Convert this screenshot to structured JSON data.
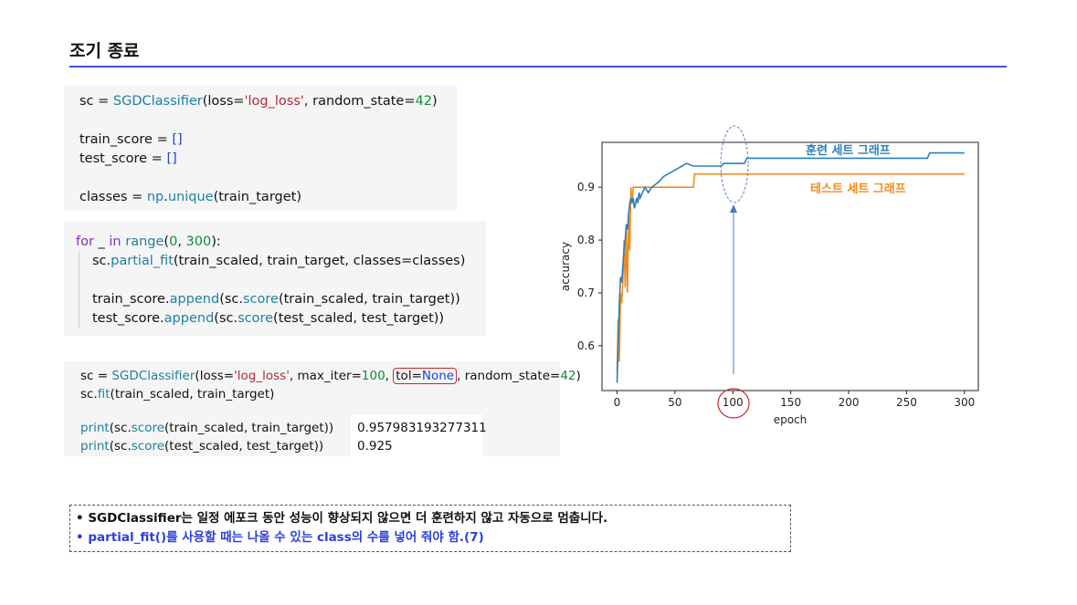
{
  "slide_title": "조기 종료",
  "code_block_1": {
    "l1": {
      "a": "sc = ",
      "fn": "SGDClassifier",
      "b": "(loss=",
      "s": "'log_loss'",
      "c": ", random_state=",
      "n": "42",
      "d": ")"
    },
    "l2": {
      "a": "train_score = ",
      "b": "[]"
    },
    "l3": {
      "a": "test_score = ",
      "b": "[]"
    },
    "l4": {
      "a": "classes = ",
      "np": "np",
      "b": ".",
      "fn": "unique",
      "c": "(train_target)"
    }
  },
  "code_block_2": {
    "l1": {
      "kw1": "for",
      "a": " _ ",
      "kw2": "in",
      "b": " ",
      "fn": "range",
      "c": "(",
      "n1": "0",
      "d": ", ",
      "n2": "300",
      "e": "):"
    },
    "l2": {
      "a": "sc.",
      "fn": "partial_fit",
      "b": "(train_scaled, train_target, classes=classes)"
    },
    "l3": {
      "a": "train_score.",
      "fn": "append",
      "b": "(sc.",
      "fn2": "score",
      "c": "(train_scaled, train_target))"
    },
    "l4": {
      "a": "test_score.",
      "fn": "append",
      "b": "(sc.",
      "fn2": "score",
      "c": "(test_scaled, test_target))"
    }
  },
  "code_block_3": {
    "l1": {
      "a": "sc = ",
      "fn": "SGDClassifier",
      "b": "(loss=",
      "s": "'log_loss'",
      "c": ", max_iter=",
      "n": "100",
      "d": ", ",
      "hl_a": "tol=",
      "hl_b": "None",
      "e": ", random_state=",
      "n2": "42",
      "f": ")"
    },
    "l2": {
      "a": "sc.",
      "fn": "fit",
      "b": "(train_scaled, train_target)"
    },
    "l3": {
      "fn": "print",
      "a": "(sc.",
      "fn2": "score",
      "b": "(train_scaled, train_target))"
    },
    "l4": {
      "fn": "print",
      "a": "(sc.",
      "fn2": "score",
      "b": "(test_scaled, test_target))"
    }
  },
  "outputs": {
    "train": "0.957983193277311",
    "test": "0.925"
  },
  "notes": {
    "line1": "• SGDClassifier는 일정 에포크 동안 성능이 향상되지 않으면 더 훈련하지 않고 자동으로 멈춥니다.",
    "line2": "• partial_fit()를 사용할 때는 나올 수 있는 class의 수를 넣어 줘야 함.(7)"
  },
  "chart_data": {
    "type": "line",
    "xlabel": "epoch",
    "ylabel": "accuracy",
    "xlim": [
      -13,
      312
    ],
    "ylim": [
      0.515,
      0.985
    ],
    "x_ticks": [
      0,
      50,
      100,
      150,
      200,
      250,
      300
    ],
    "y_ticks": [
      0.6,
      0.7,
      0.8,
      0.9
    ],
    "x_tick_labels": [
      "0",
      "50",
      "100",
      "150",
      "200",
      "250",
      "300"
    ],
    "y_tick_labels": [
      "0.6",
      "0.7",
      "0.8",
      "0.9"
    ],
    "series": [
      {
        "name": "훈련 세트 그래프",
        "color": "#2e7fb8",
        "points": [
          [
            0,
            0.53
          ],
          [
            1,
            0.6
          ],
          [
            2,
            0.68
          ],
          [
            3,
            0.73
          ],
          [
            4,
            0.72
          ],
          [
            5,
            0.75
          ],
          [
            6,
            0.78
          ],
          [
            7,
            0.8
          ],
          [
            8,
            0.83
          ],
          [
            9,
            0.82
          ],
          [
            10,
            0.85
          ],
          [
            11,
            0.87
          ],
          [
            12,
            0.88
          ],
          [
            13,
            0.87
          ],
          [
            14,
            0.88
          ],
          [
            15,
            0.86
          ],
          [
            16,
            0.87
          ],
          [
            17,
            0.88
          ],
          [
            18,
            0.87
          ],
          [
            19,
            0.89
          ],
          [
            20,
            0.88
          ],
          [
            22,
            0.89
          ],
          [
            24,
            0.9
          ],
          [
            27,
            0.89
          ],
          [
            30,
            0.9
          ],
          [
            33,
            0.905
          ],
          [
            36,
            0.91
          ],
          [
            40,
            0.92
          ],
          [
            44,
            0.925
          ],
          [
            48,
            0.93
          ],
          [
            52,
            0.935
          ],
          [
            56,
            0.94
          ],
          [
            60,
            0.945
          ],
          [
            66,
            0.94
          ],
          [
            90,
            0.94
          ],
          [
            92,
            0.945
          ],
          [
            110,
            0.945
          ],
          [
            112,
            0.955
          ],
          [
            200,
            0.955
          ],
          [
            268,
            0.955
          ],
          [
            270,
            0.965
          ],
          [
            300,
            0.965
          ]
        ]
      },
      {
        "name": "테스트 세트 그래프",
        "color": "#f08c1c",
        "points": [
          [
            0,
            0.55
          ],
          [
            1,
            0.65
          ],
          [
            2,
            0.57
          ],
          [
            3,
            0.7
          ],
          [
            4,
            0.68
          ],
          [
            5,
            0.72
          ],
          [
            6,
            0.8
          ],
          [
            7,
            0.71
          ],
          [
            8,
            0.82
          ],
          [
            9,
            0.7
          ],
          [
            10,
            0.85
          ],
          [
            11,
            0.78
          ],
          [
            12,
            0.9
          ],
          [
            13,
            0.87
          ],
          [
            14,
            0.9
          ],
          [
            20,
            0.9
          ],
          [
            40,
            0.9
          ],
          [
            66,
            0.9
          ],
          [
            67,
            0.925
          ],
          [
            300,
            0.925
          ]
        ]
      }
    ],
    "annotations": {
      "train_label": "훈련 세트 그래프",
      "test_label": "테스트 세트 그래프",
      "highlight_epoch": 100
    }
  }
}
